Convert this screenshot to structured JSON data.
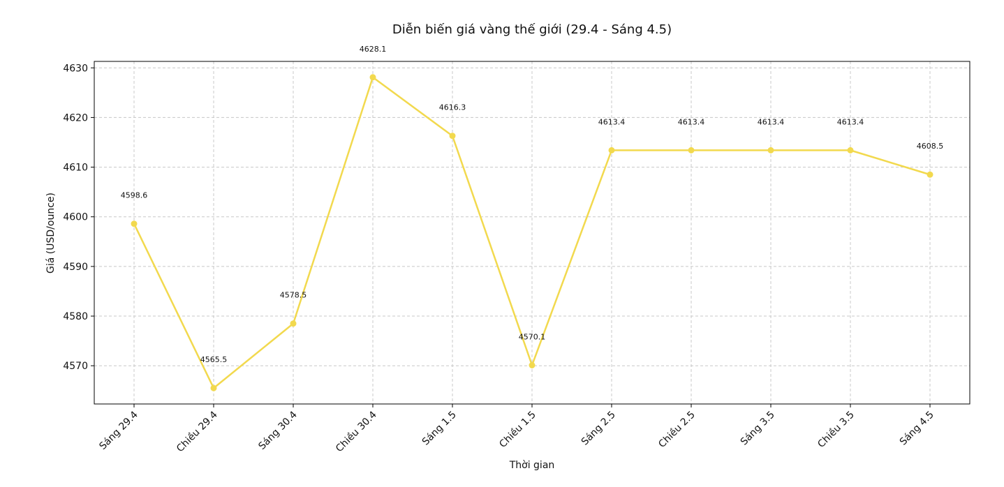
{
  "chart_data": {
    "type": "line",
    "title": "Diễn biến giá vàng thế giới (29.4 - Sáng 4.5)",
    "xlabel": "Thời gian",
    "ylabel": "Giá (USD/ounce)",
    "categories": [
      "Sáng 29.4",
      "Chiều 29.4",
      "Sáng 30.4",
      "Chiều 30.4",
      "Sáng 1.5",
      "Chiều 1.5",
      "Sáng 2.5",
      "Chiều 2.5",
      "Sáng 3.5",
      "Chiều 3.5",
      "Sáng 4.5"
    ],
    "series": [
      {
        "values": [
          4598.6,
          4565.5,
          4578.5,
          4628.1,
          4616.3,
          4570.1,
          4613.4,
          4613.4,
          4613.4,
          4613.4,
          4608.5
        ],
        "labels": [
          "4598.6",
          "4565.5",
          "4578.5",
          "4628.1",
          "4616.3",
          "4570.1",
          "4613.4",
          "4613.4",
          "4613.4",
          "4613.4",
          "4608.5"
        ],
        "color": "#f2d94e"
      }
    ],
    "yticks": [
      4570,
      4580,
      4590,
      4600,
      4610,
      4620,
      4630
    ],
    "ylim": [
      4562.3,
      4631.3
    ],
    "grid": true,
    "marker": "circle"
  }
}
